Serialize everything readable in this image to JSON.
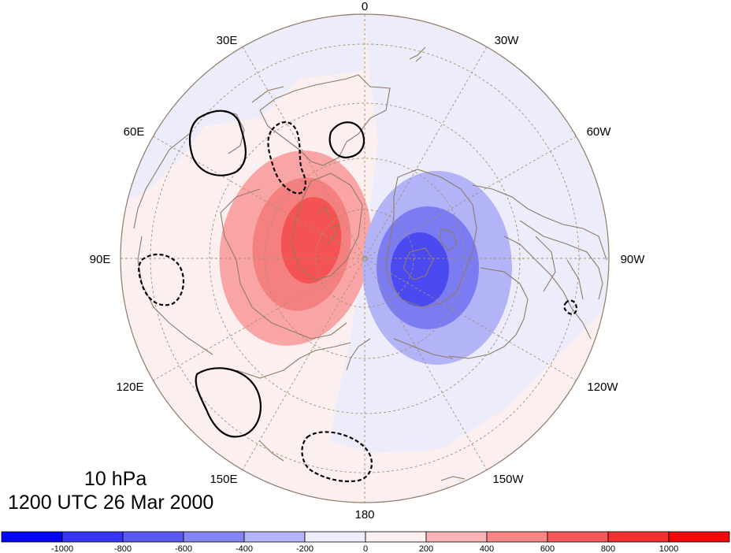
{
  "map": {
    "projection": "north-polar-stereographic",
    "longitude_labels": [
      {
        "lon": "0"
      },
      {
        "lon": "30W"
      },
      {
        "lon": "60W"
      },
      {
        "lon": "90W"
      },
      {
        "lon": "120W"
      },
      {
        "lon": "150W"
      },
      {
        "lon": "180"
      },
      {
        "lon": "150E"
      },
      {
        "lon": "120E"
      },
      {
        "lon": "90E"
      },
      {
        "lon": "60E"
      },
      {
        "lon": "30E"
      }
    ],
    "contour_lines": {
      "positive_style": "solid",
      "negative_style": "dashed"
    },
    "colors": {
      "negative_strong": "#4a4af0",
      "negative_mid": "#7c7cf2",
      "negative_weak": "#b3b3f8",
      "negative_faint": "#ececfb",
      "positive_faint": "#fcefef",
      "positive_weak": "#f9a5a5",
      "positive_mid": "#f58080",
      "positive_strong": "#f45353",
      "coastline": "#8f7a66",
      "graticule": "#a8906e"
    }
  },
  "title": {
    "level": "10 hPa",
    "datetime": "1200 UTC 26 Mar 2000"
  },
  "colorbar": {
    "colors": [
      "#0505f5",
      "#3535f5",
      "#5a5af2",
      "#8484f2",
      "#b4b4f8",
      "#ececfb",
      "#fdf0f0",
      "#f9b5b5",
      "#f78787",
      "#f45858",
      "#f23030",
      "#f20a0a"
    ],
    "labels": [
      "-1000",
      "-800",
      "-600",
      "-400",
      "-200",
      "0",
      "200",
      "400",
      "600",
      "800",
      "1000"
    ]
  }
}
